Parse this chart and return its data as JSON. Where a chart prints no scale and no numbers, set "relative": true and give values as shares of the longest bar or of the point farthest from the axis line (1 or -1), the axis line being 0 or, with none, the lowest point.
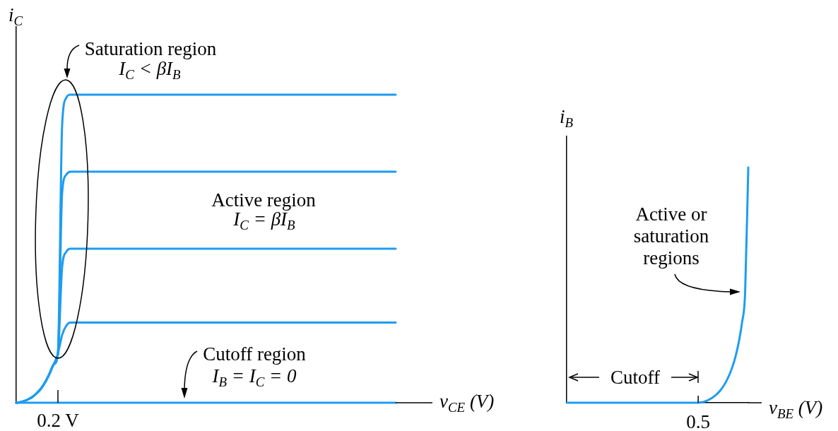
{
  "chart_data": [
    {
      "type": "line",
      "xlabel": "v$_{CE}$ (V)",
      "ylabel": "i$_{C}$",
      "relative": true,
      "marker": "none",
      "categories": [
        null,
        null,
        null,
        null,
        null,
        null,
        null,
        null,
        null,
        null,
        null,
        null,
        null,
        null,
        null,
        null,
        null,
        null,
        null,
        null,
        null,
        null,
        null,
        null,
        null,
        null,
        null,
        null,
        null,
        null,
        null,
        null,
        null,
        null,
        null,
        null,
        null,
        null,
        null,
        null,
        null,
        null,
        null,
        null,
        null,
        null,
        null,
        null,
        null,
        null,
        null,
        null,
        null,
        null,
        null,
        null,
        null,
        null,
        null,
        null,
        null,
        null,
        null,
        null,
        null,
        null,
        null,
        null,
        null,
        null,
        null,
        null,
        null,
        null,
        null,
        null,
        null,
        null,
        null,
        null,
        null,
        null,
        null,
        null,
        null,
        null,
        null,
        null,
        null,
        null,
        null,
        null
      ],
      "series": [
        {
          "color": "#1e9cf0",
          "values": [
            0,
            0.002,
            0.006,
            0.012,
            0.02,
            0.032,
            0.047,
            0.068,
            0.095,
            0.125,
            0.16,
            0.9,
            0.99,
            1,
            1,
            1,
            1,
            1,
            1,
            1,
            1,
            1,
            1,
            1,
            1,
            1,
            1,
            1,
            1,
            1,
            1,
            1,
            1,
            1,
            1,
            1,
            1,
            1,
            1,
            1,
            1,
            1,
            1,
            1,
            1,
            1,
            1,
            1,
            1,
            1,
            1,
            1,
            1,
            1,
            1,
            1,
            1,
            1,
            1,
            1,
            1,
            1,
            1,
            1,
            1,
            1,
            1,
            1,
            1,
            1,
            1,
            1,
            1,
            1,
            1,
            1,
            1,
            1,
            1,
            1,
            1,
            1,
            1,
            1,
            1,
            1,
            1,
            1,
            1,
            1,
            1,
            1
          ]
        },
        {
          "color": "#1e9cf0",
          "values": [
            0,
            0.002,
            0.006,
            0.012,
            0.02,
            0.032,
            0.047,
            0.068,
            0.095,
            0.125,
            0.16,
            0.68,
            0.74,
            0.75,
            0.75,
            0.75,
            0.75,
            0.75,
            0.75,
            0.75,
            0.75,
            0.75,
            0.75,
            0.75,
            0.75,
            0.75,
            0.75,
            0.75,
            0.75,
            0.75,
            0.75,
            0.75,
            0.75,
            0.75,
            0.75,
            0.75,
            0.75,
            0.75,
            0.75,
            0.75,
            0.75,
            0.75,
            0.75,
            0.75,
            0.75,
            0.75,
            0.75,
            0.75,
            0.75,
            0.75,
            0.75,
            0.75,
            0.75,
            0.75,
            0.75,
            0.75,
            0.75,
            0.75,
            0.75,
            0.75,
            0.75,
            0.75,
            0.75,
            0.75,
            0.75,
            0.75,
            0.75,
            0.75,
            0.75,
            0.75,
            0.75,
            0.75,
            0.75,
            0.75,
            0.75,
            0.75,
            0.75,
            0.75,
            0.75,
            0.75,
            0.75,
            0.75,
            0.75,
            0.75,
            0.75,
            0.75,
            0.75,
            0.75,
            0.75,
            0.75,
            0.75,
            0.75
          ]
        },
        {
          "color": "#1e9cf0",
          "values": [
            0,
            0.002,
            0.006,
            0.012,
            0.02,
            0.032,
            0.047,
            0.068,
            0.095,
            0.125,
            0.16,
            0.44,
            0.49,
            0.5,
            0.5,
            0.5,
            0.5,
            0.5,
            0.5,
            0.5,
            0.5,
            0.5,
            0.5,
            0.5,
            0.5,
            0.5,
            0.5,
            0.5,
            0.5,
            0.5,
            0.5,
            0.5,
            0.5,
            0.5,
            0.5,
            0.5,
            0.5,
            0.5,
            0.5,
            0.5,
            0.5,
            0.5,
            0.5,
            0.5,
            0.5,
            0.5,
            0.5,
            0.5,
            0.5,
            0.5,
            0.5,
            0.5,
            0.5,
            0.5,
            0.5,
            0.5,
            0.5,
            0.5,
            0.5,
            0.5,
            0.5,
            0.5,
            0.5,
            0.5,
            0.5,
            0.5,
            0.5,
            0.5,
            0.5,
            0.5,
            0.5,
            0.5,
            0.5,
            0.5,
            0.5,
            0.5,
            0.5,
            0.5,
            0.5,
            0.5,
            0.5,
            0.5,
            0.5,
            0.5,
            0.5,
            0.5,
            0.5,
            0.5,
            0.5,
            0.5,
            0.5,
            0.5
          ]
        },
        {
          "color": "#1e9cf0",
          "values": [
            0,
            0.002,
            0.006,
            0.012,
            0.02,
            0.032,
            0.047,
            0.068,
            0.095,
            0.125,
            0.16,
            0.22,
            0.25,
            0.26,
            0.26,
            0.26,
            0.26,
            0.26,
            0.26,
            0.26,
            0.26,
            0.26,
            0.26,
            0.26,
            0.26,
            0.26,
            0.26,
            0.26,
            0.26,
            0.26,
            0.26,
            0.26,
            0.26,
            0.26,
            0.26,
            0.26,
            0.26,
            0.26,
            0.26,
            0.26,
            0.26,
            0.26,
            0.26,
            0.26,
            0.26,
            0.26,
            0.26,
            0.26,
            0.26,
            0.26,
            0.26,
            0.26,
            0.26,
            0.26,
            0.26,
            0.26,
            0.26,
            0.26,
            0.26,
            0.26,
            0.26,
            0.26,
            0.26,
            0.26,
            0.26,
            0.26,
            0.26,
            0.26,
            0.26,
            0.26,
            0.26,
            0.26,
            0.26,
            0.26,
            0.26,
            0.26,
            0.26,
            0.26,
            0.26,
            0.26,
            0.26,
            0.26,
            0.26,
            0.26,
            0.26,
            0.26,
            0.26,
            0.26,
            0.26,
            0.26,
            0.26,
            0.26
          ]
        },
        {
          "color": "#1e9cf0",
          "values": [
            0,
            0,
            0,
            0,
            0,
            0,
            0,
            0,
            0,
            0,
            0,
            0,
            0,
            0,
            0,
            0,
            0,
            0,
            0,
            0,
            0,
            0,
            0,
            0,
            0,
            0,
            0,
            0,
            0,
            0,
            0,
            0,
            0,
            0,
            0,
            0,
            0,
            0,
            0,
            0,
            0,
            0,
            0,
            0,
            0,
            0,
            0,
            0,
            0,
            0,
            0,
            0,
            0,
            0,
            0,
            0,
            0,
            0,
            0,
            0,
            0,
            0,
            0,
            0,
            0,
            0,
            0,
            0,
            0,
            0,
            0,
            0,
            0,
            0,
            0,
            0,
            0,
            0,
            0,
            0,
            0,
            0,
            0,
            0,
            0,
            0,
            0,
            0,
            0,
            0,
            0,
            0
          ]
        }
      ],
      "annotations": [
        "Saturation region",
        "I$_{C}$ < βI$_{B}$",
        "Active region",
        "I$_{C}$ = βI$_{B}$",
        "Cutoff region",
        "I$_{B}$ = I$_{C}$ = 0",
        "0.2 V"
      ]
    },
    {
      "type": "line",
      "xlabel": "v$_{BE}$ (V)",
      "ylabel": "i$_{B}$",
      "relative": true,
      "marker": "none",
      "categories": [
        null,
        null,
        null,
        null,
        null,
        null,
        null,
        null,
        null,
        null,
        null,
        null,
        null,
        null,
        null,
        null,
        null,
        null,
        null,
        null,
        null,
        null,
        null,
        null,
        null,
        null,
        null,
        null,
        null,
        null,
        null,
        null,
        null,
        null,
        null,
        null,
        null,
        null,
        null,
        null,
        null,
        null,
        null,
        null,
        null,
        null,
        null,
        null,
        null,
        null,
        null,
        null,
        null,
        null,
        null,
        null,
        null,
        null,
        null
      ],
      "series": [
        {
          "color": "#1e9cf0",
          "values": [
            0,
            0,
            0,
            0,
            0,
            0,
            0,
            0,
            0,
            0,
            0,
            0,
            0,
            0,
            0,
            0,
            0,
            0,
            0,
            0,
            0,
            0,
            0,
            0,
            0,
            0,
            0,
            0,
            0,
            0,
            0,
            0,
            0,
            0,
            0,
            0,
            0,
            0,
            0,
            0,
            0,
            0,
            0,
            0.002,
            0.005,
            0.01,
            0.017,
            0.026,
            0.037,
            0.051,
            0.069,
            0.092,
            0.12,
            0.155,
            0.2,
            0.26,
            0.34,
            0.47,
            1
          ]
        }
      ],
      "annotations": [
        "Active or\nsaturation\nregions",
        "Cutoff",
        "0.5"
      ]
    }
  ]
}
